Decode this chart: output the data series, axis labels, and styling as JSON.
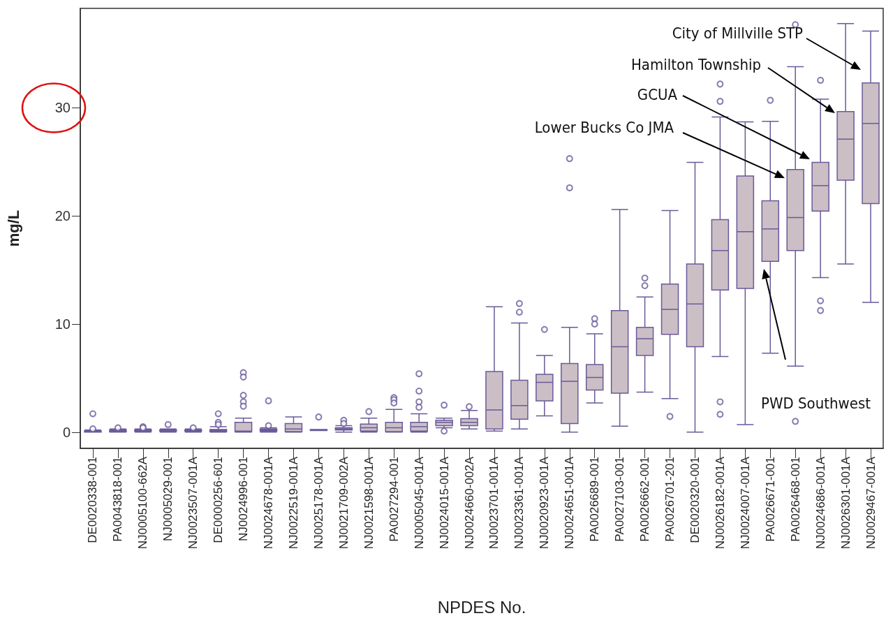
{
  "chart_data": {
    "type": "box",
    "xlabel": "NPDES No.",
    "ylabel": "mg/L",
    "categories": [
      "DE0020338-001",
      "PA0043818-001",
      "NJ0005100-662A",
      "NJ0005029-001",
      "NJ0023507-001A",
      "DE0000256-601",
      "NJ0024996-001",
      "NJ0024678-001A",
      "NJ0022519-001A",
      "NJ0025178-001A",
      "NJ0021709-002A",
      "NJ0021598-001A",
      "PA0027294-001",
      "NJ0005045-001A",
      "NJ0024015-001A",
      "NJ0024660-002A",
      "NJ0023701-001A",
      "NJ0023361-001A",
      "NJ0020923-001A",
      "NJ0024651-001A",
      "PA0026689-001",
      "PA0027103-001",
      "PA0026662-001",
      "PA0026701-201",
      "DE0020320-001",
      "NJ0026182-001A",
      "NJ0024007-001A",
      "PA0026671-001",
      "PA0026468-001",
      "NJ0024686-001A",
      "NJ0026301-001A",
      "NJ0029467-001A"
    ],
    "boxes": [
      {
        "low": 0,
        "q1": 0,
        "median": 0.05,
        "q3": 0.1,
        "high": 0.2,
        "outliers": [
          1.7,
          0.3
        ]
      },
      {
        "low": 0,
        "q1": 0.05,
        "median": 0.1,
        "q3": 0.2,
        "high": 0.3,
        "outliers": [
          0.4
        ]
      },
      {
        "low": 0,
        "q1": 0.1,
        "median": 0.15,
        "q3": 0.2,
        "high": 0.3,
        "outliers": [
          0.5,
          0.4
        ]
      },
      {
        "low": 0,
        "q1": 0.1,
        "median": 0.15,
        "q3": 0.2,
        "high": 0.3,
        "outliers": [
          0.7
        ]
      },
      {
        "low": 0,
        "q1": 0.1,
        "median": 0.15,
        "q3": 0.2,
        "high": 0.3,
        "outliers": [
          0.4
        ]
      },
      {
        "low": 0,
        "q1": 0.05,
        "median": 0.15,
        "q3": 0.25,
        "high": 0.5,
        "outliers": [
          1.7,
          0.9,
          0.7
        ]
      },
      {
        "low": 0,
        "q1": 0.05,
        "median": 0.1,
        "q3": 0.9,
        "high": 1.3,
        "outliers": [
          5.5,
          5.1,
          3.4,
          2.8,
          2.4
        ]
      },
      {
        "low": 0,
        "q1": 0.1,
        "median": 0.2,
        "q3": 0.3,
        "high": 0.4,
        "outliers": [
          2.9,
          0.6
        ]
      },
      {
        "low": 0,
        "q1": 0.05,
        "median": 0.3,
        "q3": 0.8,
        "high": 1.4
      },
      {
        "low": 0.15,
        "q1": 0.15,
        "median": 0.2,
        "q3": 0.25,
        "high": 0.25,
        "outliers": [
          1.4
        ]
      },
      {
        "low": 0,
        "q1": 0.2,
        "median": 0.3,
        "q3": 0.4,
        "high": 0.6,
        "outliers": [
          1.1,
          0.8
        ]
      },
      {
        "low": 0,
        "q1": 0.1,
        "median": 0.4,
        "q3": 0.75,
        "high": 1.3,
        "outliers": [
          1.9
        ]
      },
      {
        "low": 0,
        "q1": 0.05,
        "median": 0.4,
        "q3": 0.9,
        "high": 2.1,
        "outliers": [
          3.2,
          3.0,
          2.7
        ]
      },
      {
        "low": 0,
        "q1": 0.1,
        "median": 0.5,
        "q3": 0.9,
        "high": 1.7,
        "outliers": [
          5.4,
          3.8,
          2.8,
          2.3
        ]
      },
      {
        "low": 0.4,
        "q1": 0.6,
        "median": 0.9,
        "q3": 1.1,
        "high": 1.3,
        "outliers": [
          2.5,
          0.1
        ]
      },
      {
        "low": 0.3,
        "q1": 0.6,
        "median": 0.9,
        "q3": 1.25,
        "high": 2.0,
        "outliers": [
          2.35
        ]
      },
      {
        "low": 0.1,
        "q1": 0.3,
        "median": 2.05,
        "q3": 5.6,
        "high": 11.6
      },
      {
        "low": 0.3,
        "q1": 1.2,
        "median": 2.45,
        "q3": 4.8,
        "high": 10.1,
        "outliers": [
          11.9,
          11.1
        ]
      },
      {
        "low": 1.5,
        "q1": 2.9,
        "median": 4.6,
        "q3": 5.35,
        "high": 7.1,
        "outliers": [
          9.5
        ]
      },
      {
        "low": 0,
        "q1": 0.8,
        "median": 4.7,
        "q3": 6.35,
        "high": 9.7,
        "outliers": [
          25.3,
          22.6
        ]
      },
      {
        "low": 2.7,
        "q1": 3.9,
        "median": 5.05,
        "q3": 6.25,
        "high": 9.1,
        "outliers": [
          10.5,
          10.0
        ]
      },
      {
        "low": 0.55,
        "q1": 3.6,
        "median": 7.9,
        "q3": 11.25,
        "high": 20.6
      },
      {
        "low": 3.7,
        "q1": 7.1,
        "median": 8.65,
        "q3": 9.7,
        "high": 12.5,
        "outliers": [
          14.25,
          13.55
        ]
      },
      {
        "low": 3.1,
        "q1": 9.05,
        "median": 11.35,
        "q3": 13.7,
        "high": 20.5,
        "outliers": [
          1.45
        ]
      },
      {
        "low": 0,
        "q1": 7.9,
        "median": 11.85,
        "q3": 15.55,
        "high": 24.95
      },
      {
        "low": 7.0,
        "q1": 13.15,
        "median": 16.8,
        "q3": 19.65,
        "high": 29.15,
        "outliers": [
          32.2,
          30.6,
          2.8,
          1.65
        ]
      },
      {
        "low": 0.7,
        "q1": 13.3,
        "median": 18.55,
        "q3": 23.7,
        "high": 28.7
      },
      {
        "low": 7.3,
        "q1": 15.8,
        "median": 18.8,
        "q3": 21.4,
        "high": 28.75,
        "outliers": [
          30.7
        ]
      },
      {
        "low": 6.1,
        "q1": 16.8,
        "median": 19.85,
        "q3": 24.3,
        "high": 33.8,
        "outliers": [
          37.7,
          1.0
        ]
      },
      {
        "low": 14.3,
        "q1": 20.45,
        "median": 22.8,
        "q3": 24.95,
        "high": 30.8,
        "outliers": [
          32.55,
          12.15,
          11.25
        ]
      },
      {
        "low": 15.55,
        "q1": 23.3,
        "median": 27.1,
        "q3": 29.65,
        "high": 37.8
      },
      {
        "low": 12.0,
        "q1": 21.15,
        "median": 28.55,
        "q3": 32.3,
        "high": 37.1
      }
    ],
    "color": "#6a5a9a",
    "ylim": [
      -1.5,
      39.2
    ],
    "yticks": [
      0,
      10,
      20,
      30
    ],
    "grid": false,
    "annotations": [
      "City of Millville STP",
      "Hamilton Township",
      "GCUA",
      "Lower Bucks Co JMA",
      "PWD Southwest"
    ]
  }
}
